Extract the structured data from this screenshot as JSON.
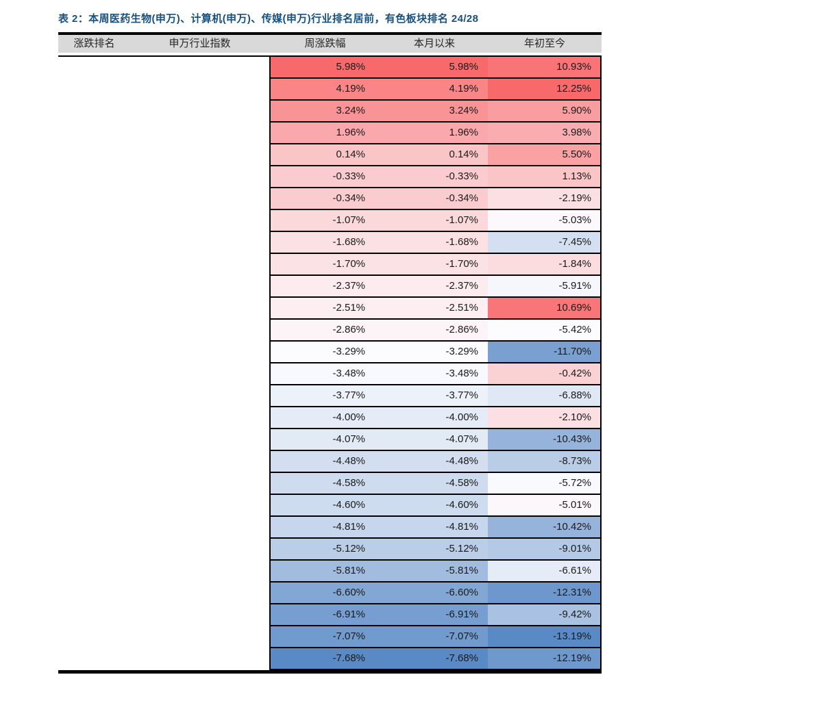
{
  "title": "表 2：本周医药生物(申万)、计算机(申万)、传媒(申万)行业排名居前，有色板块排名 24/28",
  "colors": {
    "title_text": "#17507F",
    "header_bg": "#D9D9D9",
    "header_text": "#262626",
    "cell_text": "#1A1A1A",
    "border": "#000000"
  },
  "table": {
    "headers": [
      "涨跌排名",
      "申万行业指数",
      "周涨跌幅",
      "本月以来",
      "年初至今"
    ]
  },
  "chart_data": {
    "type": "table",
    "title": "表 2：本周医药生物(申万)、计算机(申万)、传媒(申万)行业排名居前，有色板块排名 24/28",
    "columns": [
      "涨跌排名",
      "申万行业指数",
      "周涨跌幅",
      "本月以来",
      "年初至今"
    ],
    "rank_name_cells_blank": true,
    "value_format": "0.00%",
    "color_scale": {
      "max_color": "#F8696B",
      "mid_color": "#FCFCFF",
      "min_color": "#5A8AC6",
      "midpoint": "median-per-column"
    },
    "rows": [
      {
        "week": 5.98,
        "month": 5.98,
        "ytd": 10.93
      },
      {
        "week": 4.19,
        "month": 4.19,
        "ytd": 12.25
      },
      {
        "week": 3.24,
        "month": 3.24,
        "ytd": 5.9
      },
      {
        "week": 1.96,
        "month": 1.96,
        "ytd": 3.98
      },
      {
        "week": 0.14,
        "month": 0.14,
        "ytd": 5.5
      },
      {
        "week": -0.33,
        "month": -0.33,
        "ytd": 1.13
      },
      {
        "week": -0.34,
        "month": -0.34,
        "ytd": -2.19
      },
      {
        "week": -1.07,
        "month": -1.07,
        "ytd": -5.03
      },
      {
        "week": -1.68,
        "month": -1.68,
        "ytd": -7.45
      },
      {
        "week": -1.7,
        "month": -1.7,
        "ytd": -1.84
      },
      {
        "week": -2.37,
        "month": -2.37,
        "ytd": -5.91
      },
      {
        "week": -2.51,
        "month": -2.51,
        "ytd": 10.69
      },
      {
        "week": -2.86,
        "month": -2.86,
        "ytd": -5.42
      },
      {
        "week": -3.29,
        "month": -3.29,
        "ytd": -11.7
      },
      {
        "week": -3.48,
        "month": -3.48,
        "ytd": -0.42
      },
      {
        "week": -3.77,
        "month": -3.77,
        "ytd": -6.88
      },
      {
        "week": -4.0,
        "month": -4.0,
        "ytd": -2.1
      },
      {
        "week": -4.07,
        "month": -4.07,
        "ytd": -10.43
      },
      {
        "week": -4.48,
        "month": -4.48,
        "ytd": -8.73
      },
      {
        "week": -4.58,
        "month": -4.58,
        "ytd": -5.72
      },
      {
        "week": -4.6,
        "month": -4.6,
        "ytd": -5.01
      },
      {
        "week": -4.81,
        "month": -4.81,
        "ytd": -10.42
      },
      {
        "week": -5.12,
        "month": -5.12,
        "ytd": -9.01
      },
      {
        "week": -5.81,
        "month": -5.81,
        "ytd": -6.61
      },
      {
        "week": -6.6,
        "month": -6.6,
        "ytd": -12.31
      },
      {
        "week": -6.91,
        "month": -6.91,
        "ytd": -9.42
      },
      {
        "week": -7.07,
        "month": -7.07,
        "ytd": -13.19
      },
      {
        "week": -7.68,
        "month": -7.68,
        "ytd": -12.19
      }
    ]
  }
}
